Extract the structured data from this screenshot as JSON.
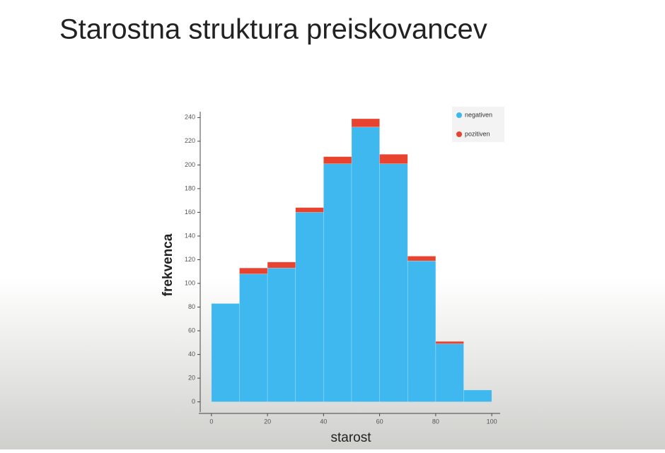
{
  "title": "Starostna struktura preiskovancev",
  "chart_data": {
    "type": "histogram",
    "bins": [
      0,
      10,
      20,
      30,
      40,
      50,
      60,
      70,
      80,
      90,
      100
    ],
    "series": [
      {
        "name": "negativen",
        "color": "#3fb8f0",
        "values": [
          83,
          108,
          113,
          160,
          201,
          232,
          201,
          119,
          49,
          10
        ]
      },
      {
        "name": "pozitiven",
        "color": "#e8432e",
        "values": [
          0,
          5,
          5,
          4,
          6,
          7,
          8,
          4,
          2,
          0
        ]
      }
    ],
    "xlabel": "starost",
    "ylabel": "frekvenca",
    "xlim": [
      -4,
      103
    ],
    "ylim": [
      -5,
      242
    ],
    "xticks": [
      0,
      20,
      40,
      60,
      80,
      100
    ],
    "yticks": [
      0,
      20,
      40,
      60,
      80,
      100,
      120,
      140,
      160,
      180,
      200,
      220,
      240
    ],
    "stacked": true,
    "legend": "upper right"
  }
}
